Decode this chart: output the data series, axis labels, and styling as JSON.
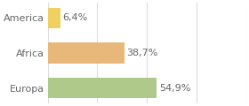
{
  "categories": [
    "America",
    "Africa",
    "Europa"
  ],
  "values": [
    6.4,
    38.7,
    54.9
  ],
  "labels": [
    "6,4%",
    "38,7%",
    "54,9%"
  ],
  "bar_colors": [
    "#f0d060",
    "#e8b87a",
    "#aec98a"
  ],
  "background_color": "#ffffff",
  "xlim": [
    0,
    100
  ],
  "bar_height": 0.58,
  "label_fontsize": 8.0,
  "tick_fontsize": 8.0,
  "grid_ticks": [
    0,
    25,
    50,
    75,
    100
  ],
  "grid_color": "#dddddd",
  "text_color": "#666666"
}
